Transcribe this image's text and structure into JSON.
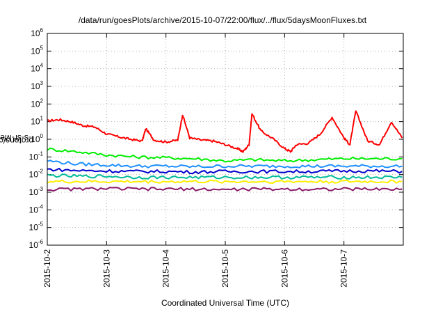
{
  "chart_data": {
    "type": "line",
    "title": "/data/run/goesPlots/archive/2015-10-07/22:00/flux/../flux/5daysMoonFluxes.txt",
    "xlabel": "Coordinated Universal Time (UTC)",
    "ylabel_parts": [
      "protons/cm",
      "2",
      "-s-sr-MeV"
    ],
    "yscale": "log",
    "ylim": [
      1e-06,
      1000000.0
    ],
    "yticks": [
      {
        "base": "10",
        "exp": "-6"
      },
      {
        "base": "10",
        "exp": "-5"
      },
      {
        "base": "10",
        "exp": "-4"
      },
      {
        "base": "10",
        "exp": "-3"
      },
      {
        "base": "10",
        "exp": "-2"
      },
      {
        "base": "10",
        "exp": "-1"
      },
      {
        "base": "10",
        "exp": "0"
      },
      {
        "base": "10",
        "exp": "1"
      },
      {
        "base": "10",
        "exp": "2"
      },
      {
        "base": "10",
        "exp": "3"
      },
      {
        "base": "10",
        "exp": "4"
      },
      {
        "base": "10",
        "exp": "5"
      },
      {
        "base": "10",
        "exp": "6"
      }
    ],
    "xlim": [
      "2015-10-02",
      "2015-10-08"
    ],
    "xticks": [
      "2015-10-2",
      "2015-10-3",
      "2015-10-4",
      "2015-10-5",
      "2015-10-6",
      "2015-10-7"
    ],
    "grid": true,
    "series": [
      {
        "color": "#ff0000",
        "x": [
          0,
          0.2,
          0.4,
          0.6,
          0.8,
          1.0,
          1.2,
          1.4,
          1.6,
          1.66,
          1.8,
          2.0,
          2.2,
          2.28,
          2.4,
          2.6,
          2.8,
          3.0,
          3.2,
          3.3,
          3.4,
          3.45,
          3.6,
          3.8,
          4.0,
          4.1,
          4.2,
          4.4,
          4.6,
          4.8,
          5.0,
          5.1,
          5.2,
          5.4,
          5.6,
          5.8,
          5.98
        ],
        "y": [
          11,
          13,
          10,
          6,
          5,
          2,
          1.4,
          1.0,
          0.8,
          4,
          0.9,
          0.7,
          0.9,
          25,
          1.2,
          0.9,
          0.8,
          0.5,
          0.3,
          0.2,
          0.5,
          28,
          3,
          1.1,
          0.3,
          0.2,
          0.5,
          0.6,
          2,
          18,
          1.2,
          0.5,
          40,
          0.8,
          0.5,
          10,
          1.2
        ]
      },
      {
        "color": "#00ee00",
        "x": [
          0,
          0.5,
          1.0,
          1.5,
          2.0,
          2.5,
          3.0,
          3.5,
          4.0,
          4.5,
          5.0,
          5.5,
          5.98
        ],
        "y": [
          0.28,
          0.2,
          0.13,
          0.1,
          0.09,
          0.08,
          0.06,
          0.07,
          0.06,
          0.07,
          0.08,
          0.08,
          0.08
        ]
      },
      {
        "color": "#1e90ff",
        "x": [
          0,
          0.5,
          1.0,
          1.5,
          2.0,
          2.5,
          3.0,
          3.5,
          4.0,
          4.5,
          5.0,
          5.5,
          5.98
        ],
        "y": [
          0.06,
          0.04,
          0.035,
          0.03,
          0.03,
          0.028,
          0.03,
          0.03,
          0.03,
          0.03,
          0.03,
          0.03,
          0.03
        ]
      },
      {
        "color": "#0000cc",
        "x": [
          0,
          0.5,
          1.0,
          1.5,
          2.0,
          2.5,
          3.0,
          3.5,
          4.0,
          4.5,
          5.0,
          5.5,
          5.98
        ],
        "y": [
          0.02,
          0.017,
          0.016,
          0.015,
          0.015,
          0.014,
          0.015,
          0.015,
          0.015,
          0.015,
          0.016,
          0.016,
          0.015
        ]
      },
      {
        "color": "#00bb99",
        "x": [
          0,
          0.5,
          1.0,
          1.5,
          2.0,
          2.5,
          3.0,
          3.5,
          4.0,
          4.5,
          5.0,
          5.5,
          5.98
        ],
        "y": [
          0.009,
          0.008,
          0.008,
          0.007,
          0.007,
          0.007,
          0.007,
          0.007,
          0.007,
          0.007,
          0.007,
          0.007,
          0.007
        ]
      },
      {
        "color": "#ffee00",
        "x": [
          0,
          0.5,
          1.0,
          1.5,
          2.0,
          2.5,
          3.0,
          3.5,
          4.0,
          4.5,
          5.0,
          5.5,
          5.98
        ],
        "y": [
          0.004,
          0.004,
          0.004,
          0.004,
          0.004,
          0.004,
          0.004,
          0.004,
          0.004,
          0.004,
          0.004,
          0.004,
          0.004
        ]
      },
      {
        "color": "#8b1a6b",
        "x": [
          0,
          0.5,
          1.0,
          1.5,
          2.0,
          2.5,
          3.0,
          3.5,
          4.0,
          4.5,
          5.0,
          5.5,
          5.98
        ],
        "y": [
          0.0014,
          0.0015,
          0.0016,
          0.0015,
          0.0015,
          0.0015,
          0.0014,
          0.0015,
          0.0015,
          0.0015,
          0.0015,
          0.0015,
          0.0015
        ]
      }
    ]
  }
}
